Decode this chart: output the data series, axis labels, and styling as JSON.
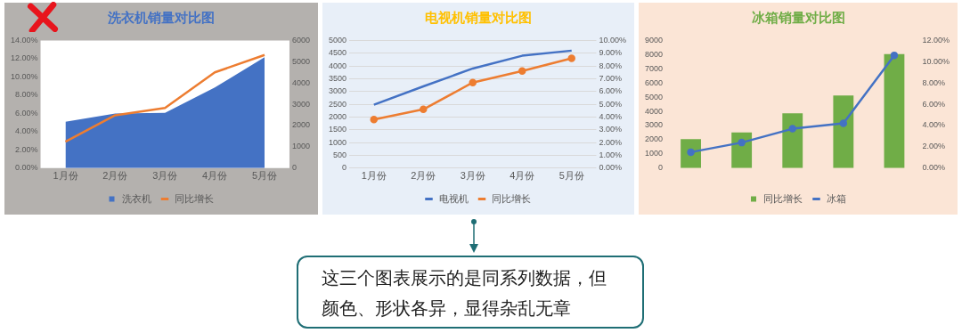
{
  "chart_data": [
    {
      "type": "area",
      "title": "洗衣机销量对比图",
      "categories": [
        "1月份",
        "2月份",
        "3月份",
        "4月份",
        "5月份"
      ],
      "series": [
        {
          "name": "洗衣机",
          "type": "area",
          "axis": "y2",
          "color": "#4472c4",
          "values": [
            2180,
            2570,
            2600,
            3790,
            5210
          ]
        },
        {
          "name": "同比增长",
          "type": "line",
          "axis": "y",
          "color": "#ed7d31",
          "values": [
            2.9,
            5.8,
            6.6,
            10.5,
            12.4
          ]
        }
      ],
      "ylim": [
        0,
        14
      ],
      "yticks": [
        {
          "value": 0,
          "label": "0.00%"
        },
        {
          "value": 2,
          "label": "2.00%"
        },
        {
          "value": 4,
          "label": "4.00%"
        },
        {
          "value": 6,
          "label": "6.00%"
        },
        {
          "value": 8,
          "label": "8.00%"
        },
        {
          "value": 10,
          "label": "10.00%"
        },
        {
          "value": 12,
          "label": "12.00%"
        },
        {
          "value": 14,
          "label": "14.00%"
        }
      ],
      "y2lim": [
        0,
        6000
      ],
      "y2ticks": [
        0,
        1000,
        2000,
        3000,
        4000,
        5000,
        6000
      ],
      "grid": false,
      "legend": "bottom"
    },
    {
      "type": "line",
      "title": "电视机销量对比图",
      "categories": [
        "1月份",
        "2月份",
        "3月份",
        "4月份",
        "5月份"
      ],
      "series": [
        {
          "name": "电视机",
          "type": "line",
          "axis": "y",
          "color": "#4472c4",
          "values": [
            2480,
            3200,
            3900,
            4400,
            4600
          ]
        },
        {
          "name": "同比增长",
          "type": "line",
          "axis": "y2",
          "color": "#ed7d31",
          "marker": "circle",
          "values": [
            3.8,
            4.6,
            6.7,
            7.6,
            8.6
          ]
        }
      ],
      "ylim": [
        0,
        5000
      ],
      "yticks": [
        0,
        500,
        1000,
        1500,
        2000,
        2500,
        3000,
        3500,
        4000,
        4500,
        5000
      ],
      "y2lim": [
        0,
        10
      ],
      "y2ticks": [
        {
          "value": 0,
          "label": "0.00%"
        },
        {
          "value": 1,
          "label": "1.00%"
        },
        {
          "value": 2,
          "label": "2.00%"
        },
        {
          "value": 3,
          "label": "3.00%"
        },
        {
          "value": 4,
          "label": "4.00%"
        },
        {
          "value": 5,
          "label": "5.00%"
        },
        {
          "value": 6,
          "label": "6.00%"
        },
        {
          "value": 7,
          "label": "7.00%"
        },
        {
          "value": 8,
          "label": "8.00%"
        },
        {
          "value": 9,
          "label": "9.00%"
        },
        {
          "value": 10,
          "label": "10.00%"
        }
      ],
      "grid": "y",
      "legend": "bottom"
    },
    {
      "type": "bar",
      "title": "冰箱销量对比图",
      "categories": [
        null,
        null,
        null,
        null,
        null
      ],
      "series": [
        {
          "name": "同比增长",
          "type": "bar",
          "axis": "y",
          "color": "#70ad47",
          "values": [
            2050,
            2520,
            3860,
            5120,
            8030
          ]
        },
        {
          "name": "冰箱",
          "type": "line",
          "axis": "y2",
          "color": "#4472c4",
          "marker": "circle",
          "values": [
            1.5,
            2.4,
            3.7,
            4.2,
            10.6
          ]
        }
      ],
      "ylim": [
        0,
        9000
      ],
      "yticks": [
        0,
        1000,
        2000,
        3000,
        4000,
        5000,
        6000,
        7000,
        8000,
        9000
      ],
      "y2lim": [
        0,
        12
      ],
      "y2ticks": [
        {
          "value": 0,
          "label": "0.00%"
        },
        {
          "value": 2,
          "label": "2.00%"
        },
        {
          "value": 4,
          "label": "4.00%"
        },
        {
          "value": 6,
          "label": "6.00%"
        },
        {
          "value": 8,
          "label": "8.00%"
        },
        {
          "value": 10,
          "label": "10.00%"
        },
        {
          "value": 12,
          "label": "12.00%"
        }
      ],
      "grid": false,
      "legend": "bottom"
    },
    {
      "type": "other",
      "annotations": [
        "这三个图表展示的是同系列数据，但颜色、形状各异，显得杂乱无章"
      ]
    }
  ]
}
